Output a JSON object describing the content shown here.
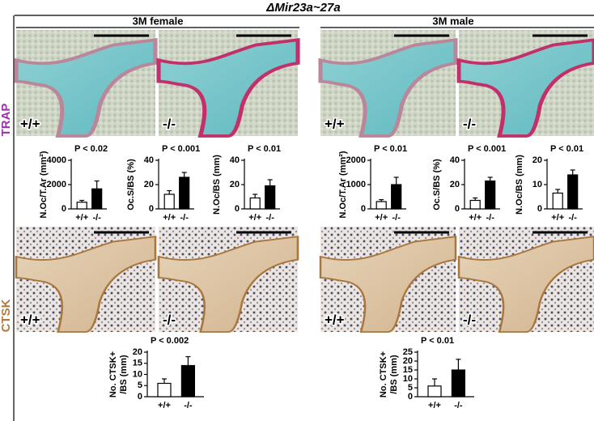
{
  "title": "ΔMir23a~27a",
  "groups": [
    "3M female",
    "3M male"
  ],
  "rows": [
    "TRAP",
    "CTSK"
  ],
  "panels": [
    "+/+",
    "-/-",
    "+/+",
    "-/-",
    "+/+",
    "-/-",
    "+/+",
    "-/-"
  ],
  "chart_data": [
    {
      "type": "bar",
      "y_label": "N.Oc/T.Ar (mm²)",
      "annotation": "P < 0.02",
      "categories": [
        "+/+",
        "-/-"
      ],
      "values": [
        550,
        1650
      ],
      "errors": [
        150,
        650
      ],
      "colors": [
        "#ffffff",
        "#000000"
      ],
      "ylim": [
        0,
        4000
      ],
      "yticks": [
        0,
        2000,
        4000
      ]
    },
    {
      "type": "bar",
      "y_label": "Oc.S/BS (%)",
      "annotation": "P < 0.001",
      "categories": [
        "+/+",
        "-/-"
      ],
      "values": [
        12,
        26
      ],
      "errors": [
        3,
        4
      ],
      "colors": [
        "#ffffff",
        "#000000"
      ],
      "ylim": [
        0,
        40
      ],
      "yticks": [
        0,
        20,
        40
      ]
    },
    {
      "type": "bar",
      "y_label": "N.Oc/BS (mm)",
      "annotation": "P < 0.01",
      "categories": [
        "+/+",
        "-/-"
      ],
      "values": [
        9,
        19
      ],
      "errors": [
        3,
        5
      ],
      "colors": [
        "#ffffff",
        "#000000"
      ],
      "ylim": [
        0,
        40
      ],
      "yticks": [
        0,
        20,
        40
      ]
    },
    {
      "type": "bar",
      "y_label": "N.Oc/T.Ar (mm²)",
      "annotation": "P < 0.01",
      "categories": [
        "+/+",
        "-/-"
      ],
      "values": [
        300,
        1000
      ],
      "errors": [
        80,
        300
      ],
      "colors": [
        "#ffffff",
        "#000000"
      ],
      "ylim": [
        0,
        2000
      ],
      "yticks": [
        0,
        1000,
        2000
      ]
    },
    {
      "type": "bar",
      "y_label": "Oc.S/BS (%)",
      "annotation": "P < 0.001",
      "categories": [
        "+/+",
        "-/-"
      ],
      "values": [
        7,
        23
      ],
      "errors": [
        2,
        3
      ],
      "colors": [
        "#ffffff",
        "#000000"
      ],
      "ylim": [
        0,
        40
      ],
      "yticks": [
        0,
        20,
        40
      ]
    },
    {
      "type": "bar",
      "y_label": "N.Oc/BS (mm)",
      "annotation": "P < 0.01",
      "categories": [
        "+/+",
        "-/-"
      ],
      "values": [
        6.5,
        14
      ],
      "errors": [
        1.5,
        2
      ],
      "colors": [
        "#ffffff",
        "#000000"
      ],
      "ylim": [
        0,
        20
      ],
      "yticks": [
        0,
        10,
        20
      ]
    },
    {
      "type": "bar",
      "y_label": [
        "No. CTSK+",
        "/BS (mm)"
      ],
      "annotation": "P < 0.002",
      "categories": [
        "+/+",
        "-/-"
      ],
      "values": [
        6,
        14
      ],
      "errors": [
        2,
        4
      ],
      "colors": [
        "#ffffff",
        "#000000"
      ],
      "ylim": [
        0,
        20
      ],
      "yticks": [
        0,
        5,
        10,
        15,
        20
      ]
    },
    {
      "type": "bar",
      "y_label": [
        "No. CTSK+",
        "/BS (mm)"
      ],
      "annotation": "P < 0.01",
      "categories": [
        "+/+",
        "-/-"
      ],
      "values": [
        6,
        15
      ],
      "errors": [
        4,
        6
      ],
      "colors": [
        "#ffffff",
        "#000000"
      ],
      "ylim": [
        0,
        25
      ],
      "yticks": [
        0,
        5,
        10,
        15,
        20,
        25
      ]
    }
  ]
}
